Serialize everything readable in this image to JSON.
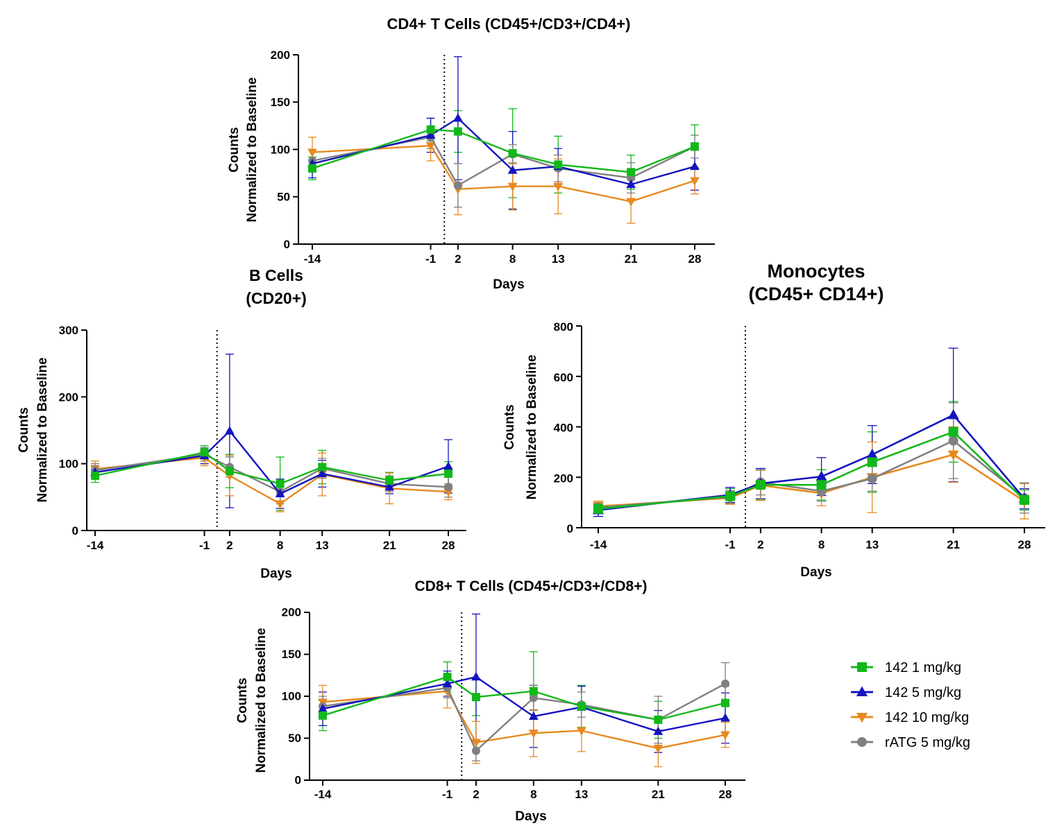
{
  "legend": {
    "items": [
      {
        "label": "142 1 mg/kg",
        "color": "#12b81a",
        "marker": "square"
      },
      {
        "label": "142 5 mg/kg",
        "color": "#1414bf",
        "marker": "triangle-up"
      },
      {
        "label": "142 10 mg/kg",
        "color": "#e8891e",
        "marker": "triangle-down"
      },
      {
        "label": "rATG 5 mg/kg",
        "color": "#808080",
        "marker": "circle"
      }
    ]
  },
  "chart_data": [
    {
      "id": "cd4",
      "type": "line",
      "title": [
        "CD4+ T Cells (CD45+/CD3+/CD4+)"
      ],
      "xlabel": "Days",
      "ylabel": [
        "Counts",
        "Normalized to Baseline"
      ],
      "x": [
        -14,
        -1,
        2,
        8,
        13,
        21,
        28
      ],
      "x_tick_labels": [
        "-14",
        "-1",
        "2",
        "8",
        "13",
        "21",
        "28"
      ],
      "ylim": [
        0,
        200
      ],
      "yticks": [
        0,
        50,
        100,
        150,
        200
      ],
      "dose_day_marker": 0.5,
      "series": [
        {
          "name": "142 1 mg/kg",
          "values": [
            80,
            121,
            119,
            96,
            84,
            76,
            103
          ],
          "err": [
            12,
            12,
            22,
            47,
            30,
            18,
            23
          ]
        },
        {
          "name": "142 5 mg/kg",
          "values": [
            85,
            115,
            133,
            78,
            82,
            63,
            82
          ],
          "err": [
            15,
            18,
            65,
            41,
            19,
            15,
            25
          ]
        },
        {
          "name": "142 10 mg/kg",
          "values": [
            97,
            104,
            58,
            61,
            61,
            45,
            67
          ],
          "err": [
            16,
            16,
            27,
            25,
            29,
            23,
            14
          ]
        },
        {
          "name": "rATG 5 mg/kg",
          "values": [
            88,
            113,
            62,
            95,
            80,
            70,
            103
          ],
          "err": [
            12,
            12,
            23,
            10,
            14,
            16,
            12
          ]
        }
      ]
    },
    {
      "id": "bcells",
      "type": "line",
      "title": [
        "B Cells",
        "(CD20+)"
      ],
      "xlabel": "Days",
      "ylabel": [
        "Counts",
        "Normalized to Baseline"
      ],
      "x": [
        -14,
        -1,
        2,
        8,
        13,
        21,
        28
      ],
      "x_tick_labels": [
        "-14",
        "-1",
        "2",
        "8",
        "13",
        "21",
        "28"
      ],
      "ylim": [
        0,
        300
      ],
      "yticks": [
        0,
        100,
        200,
        300
      ],
      "dose_day_marker": 0.5,
      "series": [
        {
          "name": "142 1 mg/kg",
          "values": [
            82,
            117,
            89,
            70,
            95,
            75,
            85
          ],
          "err": [
            10,
            10,
            25,
            40,
            25,
            12,
            18
          ]
        },
        {
          "name": "142 5 mg/kg",
          "values": [
            87,
            112,
            149,
            55,
            85,
            65,
            96
          ],
          "err": [
            10,
            12,
            115,
            22,
            20,
            10,
            40
          ]
        },
        {
          "name": "142 10 mg/kg",
          "values": [
            92,
            109,
            82,
            40,
            84,
            63,
            58
          ],
          "err": [
            12,
            12,
            30,
            12,
            32,
            23,
            12
          ]
        },
        {
          "name": "rATG 5 mg/kg",
          "values": [
            90,
            114,
            95,
            58,
            93,
            70,
            65
          ],
          "err": [
            10,
            10,
            15,
            18,
            15,
            12,
            15
          ]
        }
      ]
    },
    {
      "id": "monocytes",
      "type": "line",
      "title": [
        "Monocytes",
        "(CD45+ CD14+)"
      ],
      "xlabel": "Days",
      "ylabel": [
        "Counts",
        "Normalized to Baseline"
      ],
      "x": [
        -14,
        -1,
        2,
        8,
        13,
        21,
        28
      ],
      "x_tick_labels": [
        "-14",
        "-1",
        "2",
        "8",
        "13",
        "21",
        "28"
      ],
      "ylim": [
        0,
        800
      ],
      "yticks": [
        0,
        200,
        400,
        600,
        800
      ],
      "dose_day_marker": 0.5,
      "series": [
        {
          "name": "142 1 mg/kg",
          "values": [
            75,
            125,
            170,
            170,
            260,
            380,
            110
          ],
          "err": [
            30,
            30,
            60,
            60,
            120,
            120,
            40
          ]
        },
        {
          "name": "142 5 mg/kg",
          "values": [
            70,
            130,
            175,
            203,
            290,
            447,
            115
          ],
          "err": [
            25,
            30,
            60,
            75,
            115,
            265,
            40
          ]
        },
        {
          "name": "142 10 mg/kg",
          "values": [
            85,
            118,
            168,
            137,
            200,
            290,
            105
          ],
          "err": [
            20,
            25,
            60,
            50,
            140,
            110,
            70
          ]
        },
        {
          "name": "rATG 5 mg/kg",
          "values": [
            80,
            122,
            180,
            145,
            195,
            345,
            118
          ],
          "err": [
            20,
            25,
            50,
            40,
            50,
            150,
            60
          ]
        }
      ]
    },
    {
      "id": "cd8",
      "type": "line",
      "title": [
        "CD8+ T Cells (CD45+/CD3+/CD8+)"
      ],
      "xlabel": "Days",
      "ylabel": [
        "Counts",
        "Normalized to Baseline"
      ],
      "x": [
        -14,
        -1,
        2,
        8,
        13,
        21,
        28
      ],
      "x_tick_labels": [
        "-14",
        "-1",
        "2",
        "8",
        "13",
        "21",
        "28"
      ],
      "ylim": [
        0,
        200
      ],
      "yticks": [
        0,
        50,
        100,
        150,
        200
      ],
      "dose_day_marker": 0.5,
      "series": [
        {
          "name": "142 1 mg/kg",
          "values": [
            77,
            123,
            99,
            106,
            88,
            72,
            92
          ],
          "err": [
            18,
            18,
            22,
            47,
            25,
            22,
            20
          ]
        },
        {
          "name": "142 5 mg/kg",
          "values": [
            85,
            115,
            123,
            76,
            87,
            58,
            74
          ],
          "err": [
            20,
            15,
            75,
            37,
            25,
            25,
            30
          ]
        },
        {
          "name": "142 10 mg/kg",
          "values": [
            93,
            106,
            45,
            56,
            59,
            38,
            54
          ],
          "err": [
            20,
            20,
            25,
            28,
            25,
            22,
            15
          ]
        },
        {
          "name": "rATG 5 mg/kg",
          "values": [
            88,
            110,
            35,
            98,
            90,
            72,
            115
          ],
          "err": [
            12,
            12,
            12,
            15,
            15,
            28,
            25
          ]
        }
      ]
    }
  ]
}
